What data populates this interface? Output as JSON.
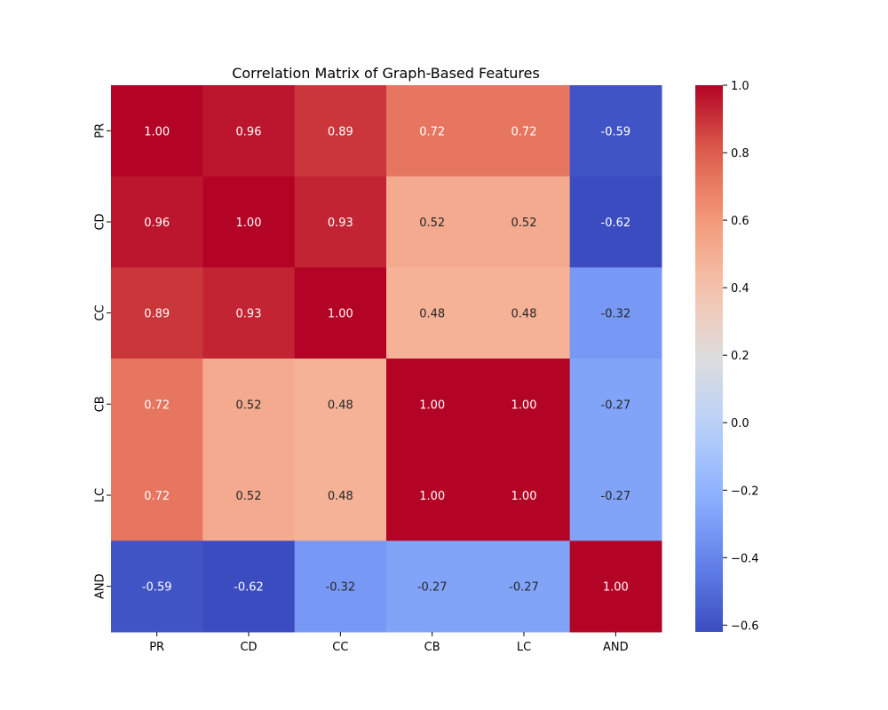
{
  "chart_data": {
    "type": "heatmap",
    "title": "Correlation Matrix of Graph-Based Features",
    "x_labels": [
      "PR",
      "CD",
      "CC",
      "CB",
      "LC",
      "AND"
    ],
    "y_labels": [
      "PR",
      "CD",
      "CC",
      "CB",
      "LC",
      "AND"
    ],
    "values": [
      [
        1.0,
        0.96,
        0.89,
        0.72,
        0.72,
        -0.59
      ],
      [
        0.96,
        1.0,
        0.93,
        0.52,
        0.52,
        -0.62
      ],
      [
        0.89,
        0.93,
        1.0,
        0.48,
        0.48,
        -0.32
      ],
      [
        0.72,
        0.52,
        0.48,
        1.0,
        1.0,
        -0.27
      ],
      [
        0.72,
        0.52,
        0.48,
        1.0,
        1.0,
        -0.27
      ],
      [
        -0.59,
        -0.62,
        -0.32,
        -0.27,
        -0.27,
        1.0
      ]
    ],
    "value_format": "0.00",
    "colormap": "coolwarm",
    "colorbar": {
      "min": -0.62,
      "max": 1.0,
      "ticks": [
        1.0,
        0.8,
        0.6,
        0.4,
        0.2,
        0.0,
        -0.2,
        -0.4,
        -0.6
      ],
      "tick_labels": [
        "1.0",
        "0.8",
        "0.6",
        "0.4",
        "0.2",
        "0.0",
        "−0.2",
        "−0.4",
        "−0.6"
      ]
    },
    "grid": false,
    "legend": "colorbar-right"
  }
}
